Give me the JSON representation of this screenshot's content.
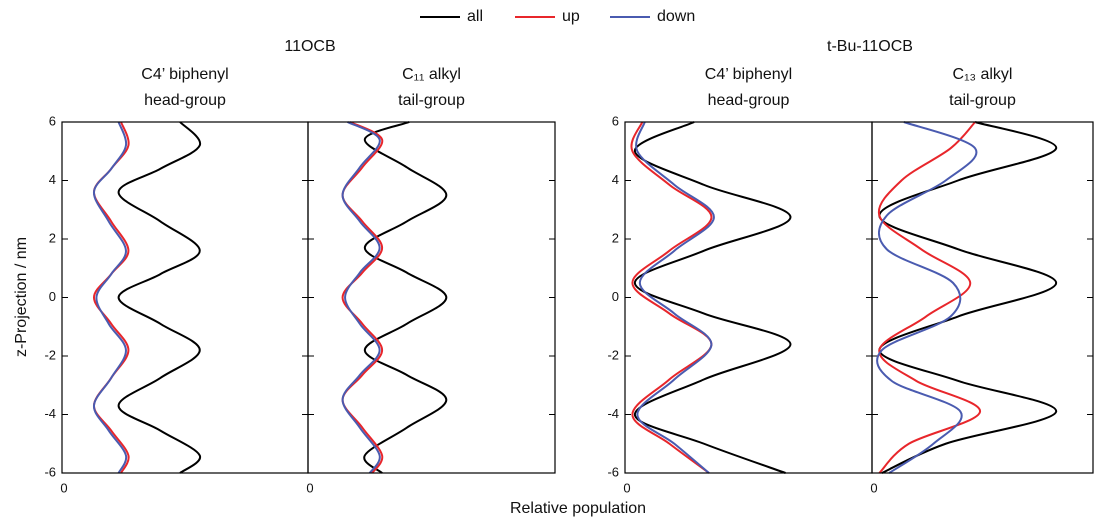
{
  "figure": {
    "groups": [
      "11OCB",
      "t-Bu-11OCB"
    ],
    "ylabel": "z-Projection / nm",
    "xlabel": "Relative population"
  },
  "chart_data": [
    {
      "type": "line",
      "title": [
        "C4’ biphenyl",
        "head-group"
      ],
      "xlim": [
        0,
        1
      ],
      "xticks": [
        0
      ],
      "ylim": [
        -6,
        6
      ],
      "yticks": [
        -6,
        -4,
        -2,
        0,
        2,
        4,
        6
      ],
      "show_ytick_labels": true,
      "y": [
        6,
        5.2,
        4.4,
        3.6,
        2.6,
        1.6,
        0.8,
        0,
        -0.9,
        -1.8,
        -2.75,
        -3.7,
        -4.55,
        -5.4,
        -6
      ],
      "series": [
        {
          "name": "all",
          "color": "#000000",
          "values": [
            0.48,
            0.56,
            0.4,
            0.23,
            0.4,
            0.56,
            0.4,
            0.23,
            0.4,
            0.56,
            0.4,
            0.23,
            0.4,
            0.56,
            0.48
          ]
        },
        {
          "name": "up",
          "color": "#e8262b",
          "values": [
            0.24,
            0.27,
            0.2,
            0.13,
            0.2,
            0.27,
            0.2,
            0.13,
            0.2,
            0.27,
            0.2,
            0.13,
            0.2,
            0.27,
            0.24
          ]
        },
        {
          "name": "down",
          "color": "#4a5bb0",
          "values": [
            0.23,
            0.26,
            0.2,
            0.13,
            0.19,
            0.26,
            0.2,
            0.14,
            0.19,
            0.26,
            0.2,
            0.13,
            0.19,
            0.26,
            0.23
          ]
        }
      ]
    },
    {
      "type": "line",
      "title": [
        "C₁₁ alkyl",
        "tail-group"
      ],
      "xlim": [
        0,
        1
      ],
      "xticks": [
        0
      ],
      "ylim": [
        -6,
        6
      ],
      "yticks": [
        -6,
        -4,
        -2,
        0,
        2,
        4,
        6
      ],
      "show_ytick_labels": false,
      "y": [
        6,
        5.4,
        4.45,
        3.5,
        2.6,
        1.7,
        0.85,
        0,
        -0.9,
        -1.8,
        -2.65,
        -3.5,
        -4.45,
        -5.4,
        -6
      ],
      "series": [
        {
          "name": "all",
          "color": "#000000",
          "values": [
            0.41,
            0.23,
            0.4,
            0.56,
            0.4,
            0.23,
            0.4,
            0.56,
            0.4,
            0.23,
            0.4,
            0.56,
            0.4,
            0.23,
            0.3
          ]
        },
        {
          "name": "up",
          "color": "#e8262b",
          "values": [
            0.17,
            0.3,
            0.22,
            0.14,
            0.22,
            0.3,
            0.22,
            0.14,
            0.22,
            0.3,
            0.22,
            0.14,
            0.22,
            0.3,
            0.26
          ]
        },
        {
          "name": "down",
          "color": "#4a5bb0",
          "values": [
            0.16,
            0.29,
            0.21,
            0.14,
            0.21,
            0.29,
            0.21,
            0.15,
            0.21,
            0.29,
            0.21,
            0.14,
            0.21,
            0.29,
            0.25
          ]
        }
      ]
    },
    {
      "type": "line",
      "title": [
        "C4’ biphenyl",
        "head-group"
      ],
      "xlim": [
        0,
        1
      ],
      "xticks": [
        0
      ],
      "ylim": [
        -6,
        6
      ],
      "yticks": [
        -6,
        -4,
        -2,
        0,
        2,
        4,
        6
      ],
      "show_ytick_labels": true,
      "y": [
        6,
        5.0,
        3.85,
        2.75,
        1.6,
        0.5,
        -0.55,
        -1.6,
        -2.8,
        -4.0,
        -5.0,
        -6
      ],
      "series": [
        {
          "name": "all",
          "color": "#000000",
          "values": [
            0.28,
            0.04,
            0.32,
            0.67,
            0.32,
            0.04,
            0.32,
            0.67,
            0.32,
            0.04,
            0.32,
            0.65
          ]
        },
        {
          "name": "up",
          "color": "#e8262b",
          "values": [
            0.07,
            0.03,
            0.18,
            0.35,
            0.18,
            0.03,
            0.18,
            0.35,
            0.18,
            0.03,
            0.18,
            0.34
          ]
        },
        {
          "name": "down",
          "color": "#4a5bb0",
          "values": [
            0.08,
            0.05,
            0.2,
            0.36,
            0.2,
            0.06,
            0.2,
            0.35,
            0.2,
            0.05,
            0.2,
            0.34
          ]
        }
      ]
    },
    {
      "type": "line",
      "title": [
        "C₁₃ alkyl",
        "tail-group"
      ],
      "xlim": [
        0,
        0.9
      ],
      "xticks": [
        0
      ],
      "ylim": [
        -6,
        6
      ],
      "yticks": [
        -6,
        -4,
        -2,
        0,
        2,
        4,
        6
      ],
      "show_ytick_labels": false,
      "y": [
        6,
        5.1,
        4.0,
        2.8,
        1.65,
        0.5,
        -0.65,
        -1.8,
        -2.85,
        -3.9,
        -5.0,
        -6
      ],
      "series": [
        {
          "name": "all",
          "color": "#000000",
          "values": [
            0.42,
            0.75,
            0.35,
            0.03,
            0.35,
            0.75,
            0.35,
            0.03,
            0.35,
            0.75,
            0.3,
            0.04
          ]
        },
        {
          "name": "up",
          "color": "#e8262b",
          "values": [
            0.42,
            0.32,
            0.12,
            0.03,
            0.2,
            0.4,
            0.22,
            0.03,
            0.18,
            0.44,
            0.15,
            0.03
          ]
        },
        {
          "name": "down",
          "color": "#4a5bb0",
          "values": [
            0.13,
            0.42,
            0.3,
            0.06,
            0.06,
            0.33,
            0.32,
            0.04,
            0.08,
            0.36,
            0.25,
            0.07
          ]
        }
      ]
    }
  ]
}
